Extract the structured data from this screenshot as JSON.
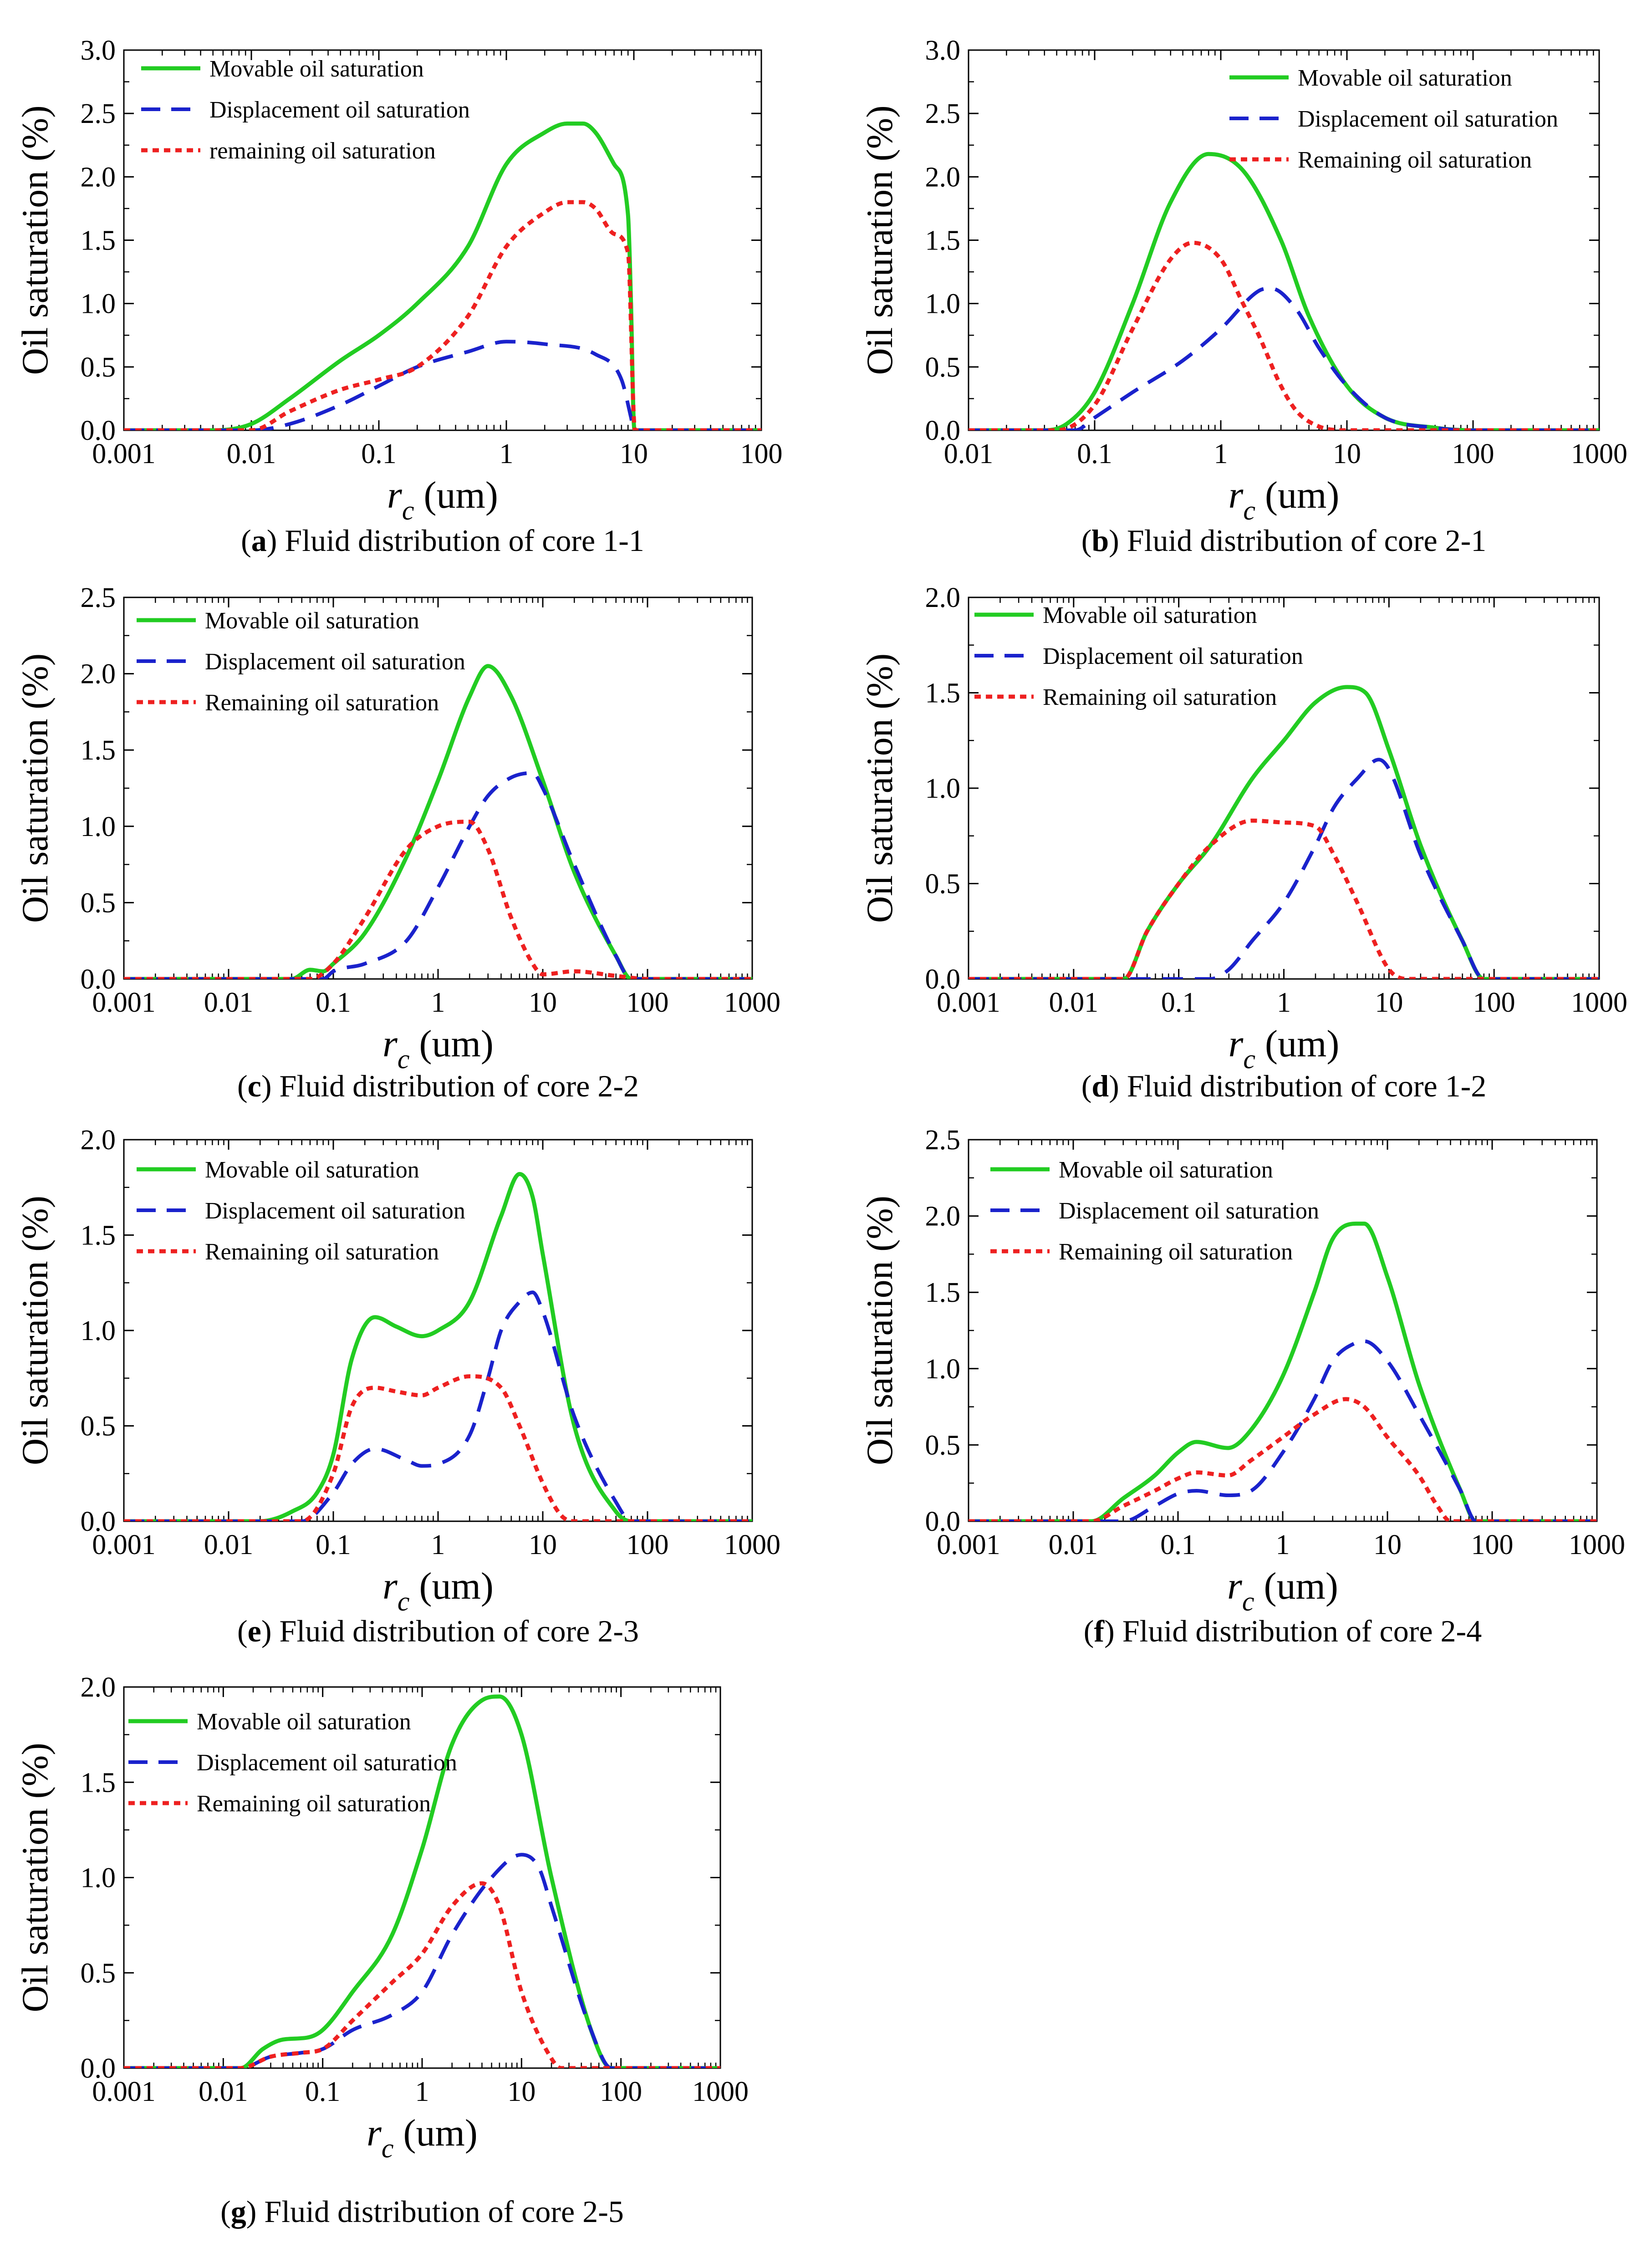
{
  "colors": {
    "movable": "#22cc22",
    "displacement": "#1a22cc",
    "remaining": "#ee2020",
    "axis": "#000000"
  },
  "series_labels": [
    "Movable oil saturation",
    "Displacement oil saturation",
    "Remaining oil saturation"
  ],
  "chart_data": [
    {
      "id": "a",
      "type": "line",
      "caption_letter": "a",
      "caption_text": "Fluid distribution of core 1-1",
      "ylabel": "Oil saturation (%)",
      "xlabel_sym": "r",
      "xlabel_sub": "c",
      "xlabel_unit": " (um)",
      "xscale": "log",
      "xlim": [
        0.001,
        100
      ],
      "ylim": [
        0,
        3.0
      ],
      "xticks": [
        "0.001",
        "0.01",
        "0.1",
        "1",
        "10",
        "100"
      ],
      "yticks": [
        "0.0",
        "0.5",
        "1.0",
        "1.5",
        "2.0",
        "2.5",
        "3.0"
      ],
      "legend": [
        "Movable oil saturation",
        "Displacement oil saturation",
        "remaining oil saturation"
      ],
      "legend_position": "top-left",
      "series": [
        {
          "name": "Movable oil saturation",
          "x": [
            0.001,
            0.005,
            0.01,
            0.02,
            0.05,
            0.1,
            0.2,
            0.5,
            1,
            2,
            3,
            4,
            5,
            7,
            9,
            9.5,
            10,
            10.2,
            100
          ],
          "y": [
            0,
            0,
            0.05,
            0.25,
            0.55,
            0.75,
            1.0,
            1.45,
            2.1,
            2.35,
            2.42,
            2.42,
            2.35,
            2.1,
            1.7,
            1.0,
            0.05,
            0,
            0
          ]
        },
        {
          "name": "Displacement oil saturation",
          "x": [
            0.001,
            0.01,
            0.02,
            0.05,
            0.1,
            0.2,
            0.5,
            1,
            2,
            5,
            8,
            9.5,
            10,
            100
          ],
          "y": [
            0,
            0,
            0.05,
            0.2,
            0.35,
            0.5,
            0.62,
            0.7,
            0.68,
            0.6,
            0.4,
            0.1,
            0,
            0
          ]
        },
        {
          "name": "remaining oil saturation",
          "x": [
            0.001,
            0.01,
            0.02,
            0.05,
            0.1,
            0.2,
            0.5,
            1,
            2,
            3,
            4,
            5,
            7,
            9,
            10,
            10.2,
            100
          ],
          "y": [
            0,
            0,
            0.15,
            0.32,
            0.4,
            0.5,
            0.9,
            1.45,
            1.72,
            1.8,
            1.8,
            1.75,
            1.55,
            1.4,
            0.1,
            0,
            0
          ]
        }
      ]
    },
    {
      "id": "b",
      "type": "line",
      "caption_letter": "b",
      "caption_text": "Fluid distribution of core 2-1",
      "ylabel": "Oil saturation (%)",
      "xlabel_sym": "r",
      "xlabel_sub": "c",
      "xlabel_unit": " (um)",
      "xscale": "log",
      "xlim": [
        0.01,
        1000
      ],
      "ylim": [
        0,
        3.0
      ],
      "xticks": [
        "0.01",
        "0.1",
        "1",
        "10",
        "100",
        "1000"
      ],
      "yticks": [
        "0.0",
        "0.5",
        "1.0",
        "1.5",
        "2.0",
        "2.5",
        "3.0"
      ],
      "legend": [
        "Movable oil saturation",
        "Displacement oil saturation",
        "Remaining oil saturation"
      ],
      "legend_position": "top-right",
      "series": [
        {
          "name": "Movable oil saturation",
          "x": [
            0.01,
            0.04,
            0.06,
            0.1,
            0.2,
            0.4,
            0.8,
            1.5,
            3,
            5,
            10,
            20,
            50,
            100,
            1000
          ],
          "y": [
            0,
            0,
            0.05,
            0.3,
            1.0,
            1.8,
            2.18,
            2.05,
            1.5,
            0.9,
            0.35,
            0.1,
            0.02,
            0,
            0
          ]
        },
        {
          "name": "Displacement oil saturation",
          "x": [
            0.01,
            0.07,
            0.1,
            0.2,
            0.5,
            1,
            2,
            2.5,
            4,
            6,
            10,
            20,
            50,
            100,
            1000
          ],
          "y": [
            0,
            0,
            0.1,
            0.3,
            0.55,
            0.8,
            1.1,
            1.12,
            0.95,
            0.65,
            0.35,
            0.1,
            0.02,
            0,
            0
          ]
        },
        {
          "name": "Remaining oil saturation",
          "x": [
            0.01,
            0.05,
            0.1,
            0.2,
            0.4,
            0.6,
            1,
            1.5,
            2,
            3,
            4,
            6,
            10,
            100,
            1000
          ],
          "y": [
            0,
            0,
            0.2,
            0.8,
            1.35,
            1.48,
            1.35,
            1.0,
            0.75,
            0.35,
            0.15,
            0.03,
            0,
            0,
            0
          ]
        }
      ]
    },
    {
      "id": "c",
      "type": "line",
      "caption_letter": "c",
      "caption_text": "Fluid distribution of core 2-2",
      "ylabel": "Oil saturation (%)",
      "xlabel_sym": "r",
      "xlabel_sub": "c",
      "xlabel_unit": " (um)",
      "xscale": "log",
      "xlim": [
        0.001,
        1000
      ],
      "ylim": [
        0,
        2.5
      ],
      "xticks": [
        "0.001",
        "0.01",
        "0.1",
        "1",
        "10",
        "100",
        "1000"
      ],
      "yticks": [
        "0.0",
        "0.5",
        "1.0",
        "1.5",
        "2.0",
        "2.5"
      ],
      "legend": [
        "Movable oil saturation",
        "Displacement oil saturation",
        "Remaining oil saturation"
      ],
      "legend_position": "top-left",
      "series": [
        {
          "name": "Movable oil saturation",
          "x": [
            0.001,
            0.04,
            0.06,
            0.08,
            0.1,
            0.2,
            0.5,
            1,
            2,
            3,
            5,
            10,
            20,
            50,
            70,
            1000
          ],
          "y": [
            0,
            0,
            0.06,
            0.05,
            0.1,
            0.3,
            0.8,
            1.3,
            1.85,
            2.05,
            1.85,
            1.3,
            0.7,
            0.15,
            0,
            0
          ]
        },
        {
          "name": "Displacement oil saturation",
          "x": [
            0.001,
            0.08,
            0.1,
            0.2,
            0.5,
            1,
            2,
            3,
            5,
            8,
            10,
            20,
            50,
            70,
            1000
          ],
          "y": [
            0,
            0,
            0.05,
            0.1,
            0.25,
            0.6,
            1.0,
            1.2,
            1.32,
            1.35,
            1.25,
            0.75,
            0.15,
            0,
            0
          ]
        },
        {
          "name": "Remaining oil saturation",
          "x": [
            0.001,
            0.06,
            0.1,
            0.2,
            0.5,
            1,
            2,
            3,
            5,
            8,
            10,
            20,
            50,
            100,
            1000
          ],
          "y": [
            0,
            0,
            0.1,
            0.4,
            0.85,
            1.0,
            1.03,
            0.85,
            0.4,
            0.1,
            0.03,
            0.05,
            0.02,
            0,
            0
          ]
        }
      ]
    },
    {
      "id": "d",
      "type": "line",
      "caption_letter": "d",
      "caption_text": "Fluid distribution of core 1-2",
      "ylabel": "Oil saturation (%)",
      "xlabel_sym": "r",
      "xlabel_sub": "c",
      "xlabel_unit": " (um)",
      "xscale": "log",
      "xlim": [
        0.001,
        1000
      ],
      "ylim": [
        0,
        2.0
      ],
      "xticks": [
        "0.001",
        "0.01",
        "0.1",
        "1",
        "10",
        "100",
        "1000"
      ],
      "yticks": [
        "0.0",
        "0.5",
        "1.0",
        "1.5",
        "2.0"
      ],
      "legend": [
        "Movable oil saturation",
        "Displacement oil saturation",
        "Remaining oil saturation"
      ],
      "legend_position": "top-left",
      "series": [
        {
          "name": "Movable oil saturation",
          "x": [
            0.001,
            0.03,
            0.05,
            0.1,
            0.2,
            0.5,
            1,
            2,
            4,
            6,
            10,
            20,
            50,
            80,
            1000
          ],
          "y": [
            0,
            0,
            0.25,
            0.5,
            0.7,
            1.05,
            1.25,
            1.45,
            1.53,
            1.5,
            1.2,
            0.7,
            0.2,
            0,
            0
          ]
        },
        {
          "name": "Displacement oil saturation",
          "x": [
            0.001,
            0.2,
            0.3,
            0.5,
            1,
            2,
            3,
            5,
            8,
            10,
            20,
            50,
            80,
            1000
          ],
          "y": [
            0,
            0,
            0.05,
            0.2,
            0.4,
            0.7,
            0.9,
            1.05,
            1.15,
            1.1,
            0.65,
            0.2,
            0,
            0
          ]
        },
        {
          "name": "Remaining oil saturation",
          "x": [
            0.001,
            0.03,
            0.05,
            0.1,
            0.2,
            0.5,
            1,
            2,
            3,
            5,
            10,
            15,
            1000
          ],
          "y": [
            0,
            0,
            0.25,
            0.5,
            0.7,
            0.83,
            0.82,
            0.8,
            0.65,
            0.4,
            0.05,
            0,
            0
          ]
        }
      ]
    },
    {
      "id": "e",
      "type": "line",
      "caption_letter": "e",
      "caption_text": "Fluid distribution of core 2-3",
      "ylabel": "Oil saturation (%)",
      "xlabel_sym": "r",
      "xlabel_sub": "c",
      "xlabel_unit": " (um)",
      "xscale": "log",
      "xlim": [
        0.001,
        1000
      ],
      "ylim": [
        0,
        2.0
      ],
      "xticks": [
        "0.001",
        "0.01",
        "0.1",
        "1",
        "10",
        "100",
        "1000"
      ],
      "yticks": [
        "0.0",
        "0.5",
        "1.0",
        "1.5",
        "2.0"
      ],
      "legend": [
        "Movable oil saturation",
        "Displacement oil saturation",
        "Remaining oil saturation"
      ],
      "legend_position": "top-left",
      "series": [
        {
          "name": "Movable oil saturation",
          "x": [
            0.001,
            0.02,
            0.04,
            0.07,
            0.1,
            0.15,
            0.25,
            0.4,
            0.7,
            1,
            2,
            4,
            6,
            8,
            10,
            20,
            50,
            70,
            1000
          ],
          "y": [
            0,
            0,
            0.05,
            0.15,
            0.35,
            0.85,
            1.07,
            1.02,
            0.97,
            1.0,
            1.15,
            1.6,
            1.82,
            1.7,
            1.4,
            0.5,
            0.05,
            0,
            0
          ]
        },
        {
          "name": "Displacement oil saturation",
          "x": [
            0.001,
            0.05,
            0.1,
            0.15,
            0.25,
            0.5,
            0.7,
            1,
            2,
            3,
            4,
            6,
            8,
            10,
            20,
            50,
            70,
            1000
          ],
          "y": [
            0,
            0,
            0.15,
            0.3,
            0.38,
            0.32,
            0.29,
            0.3,
            0.45,
            0.75,
            1.0,
            1.15,
            1.2,
            1.1,
            0.55,
            0.1,
            0,
            0
          ]
        },
        {
          "name": "Remaining oil saturation",
          "x": [
            0.001,
            0.05,
            0.1,
            0.15,
            0.25,
            0.4,
            0.7,
            1,
            2,
            4,
            6,
            10,
            15,
            20,
            1000
          ],
          "y": [
            0,
            0,
            0.25,
            0.6,
            0.7,
            0.68,
            0.66,
            0.7,
            0.76,
            0.7,
            0.5,
            0.2,
            0.03,
            0,
            0
          ]
        }
      ]
    },
    {
      "id": "f",
      "type": "line",
      "caption_letter": "f",
      "caption_text": "Fluid distribution of core 2-4",
      "ylabel": "Oil saturation (%)",
      "xlabel_sym": "r",
      "xlabel_sub": "c",
      "xlabel_unit": " (um)",
      "xscale": "log",
      "xlim": [
        0.001,
        1000
      ],
      "ylim": [
        0,
        2.5
      ],
      "xticks": [
        "0.001",
        "0.01",
        "0.1",
        "1",
        "10",
        "100",
        "1000"
      ],
      "yticks": [
        "0.0",
        "0.5",
        "1.0",
        "1.5",
        "2.0",
        "2.5"
      ],
      "legend": [
        "Movable oil saturation",
        "Displacement oil saturation",
        "Remaining oil saturation"
      ],
      "legend_position": "top-left",
      "series": [
        {
          "name": "Movable oil saturation",
          "x": [
            0.001,
            0.015,
            0.03,
            0.06,
            0.1,
            0.15,
            0.3,
            0.5,
            1,
            2,
            3,
            5,
            6,
            10,
            20,
            50,
            70,
            1000
          ],
          "y": [
            0,
            0,
            0.15,
            0.3,
            0.45,
            0.52,
            0.48,
            0.6,
            0.95,
            1.5,
            1.85,
            1.95,
            1.95,
            1.6,
            0.9,
            0.2,
            0,
            0
          ]
        },
        {
          "name": "Displacement oil saturation",
          "x": [
            0.001,
            0.03,
            0.06,
            0.1,
            0.15,
            0.3,
            0.5,
            1,
            2,
            3,
            5,
            6,
            10,
            20,
            50,
            70,
            1000
          ],
          "y": [
            0,
            0,
            0.1,
            0.18,
            0.2,
            0.17,
            0.2,
            0.45,
            0.8,
            1.05,
            1.17,
            1.18,
            1.05,
            0.7,
            0.2,
            0,
            0
          ]
        },
        {
          "name": "Remaining oil saturation",
          "x": [
            0.001,
            0.015,
            0.03,
            0.06,
            0.1,
            0.15,
            0.3,
            0.5,
            1,
            2,
            4,
            6,
            10,
            20,
            30,
            40,
            1000
          ],
          "y": [
            0,
            0,
            0.1,
            0.2,
            0.28,
            0.32,
            0.3,
            0.4,
            0.55,
            0.7,
            0.8,
            0.75,
            0.55,
            0.3,
            0.1,
            0,
            0
          ]
        }
      ]
    },
    {
      "id": "g",
      "type": "line",
      "caption_letter": "g",
      "caption_text": "Fluid distribution of core 2-5",
      "ylabel": "Oil saturation (%)",
      "xlabel_sym": "r",
      "xlabel_sub": "c",
      "xlabel_unit": " (um)",
      "xscale": "log",
      "xlim": [
        0.001,
        1000
      ],
      "ylim": [
        0,
        2.0
      ],
      "xticks": [
        "0.001",
        "0.01",
        "0.1",
        "1",
        "10",
        "100",
        "1000"
      ],
      "yticks": [
        "0.0",
        "0.5",
        "1.0",
        "1.5",
        "2.0"
      ],
      "legend": [
        "Movable oil saturation",
        "Displacement oil saturation",
        "Remaining oil saturation"
      ],
      "legend_position": "top-left",
      "series": [
        {
          "name": "Movable oil saturation",
          "x": [
            0.001,
            0.015,
            0.025,
            0.04,
            0.07,
            0.1,
            0.2,
            0.5,
            1,
            2,
            4,
            6,
            10,
            20,
            50,
            80,
            1000
          ],
          "y": [
            0,
            0,
            0.1,
            0.15,
            0.16,
            0.2,
            0.4,
            0.7,
            1.15,
            1.7,
            1.93,
            1.95,
            1.75,
            1.0,
            0.2,
            0,
            0
          ]
        },
        {
          "name": "Displacement oil saturation",
          "x": [
            0.001,
            0.015,
            0.03,
            0.06,
            0.1,
            0.2,
            0.5,
            1,
            2,
            5,
            10,
            15,
            20,
            50,
            80,
            1000
          ],
          "y": [
            0,
            0,
            0.06,
            0.08,
            0.1,
            0.2,
            0.28,
            0.4,
            0.7,
            1.0,
            1.12,
            1.05,
            0.85,
            0.2,
            0,
            0
          ]
        },
        {
          "name": "Remaining oil saturation",
          "x": [
            0.001,
            0.015,
            0.03,
            0.06,
            0.1,
            0.2,
            0.5,
            1,
            2,
            4,
            6,
            10,
            20,
            25,
            1000
          ],
          "y": [
            0,
            0,
            0.06,
            0.08,
            0.1,
            0.25,
            0.45,
            0.6,
            0.85,
            0.97,
            0.85,
            0.4,
            0.05,
            0,
            0
          ]
        }
      ]
    }
  ]
}
